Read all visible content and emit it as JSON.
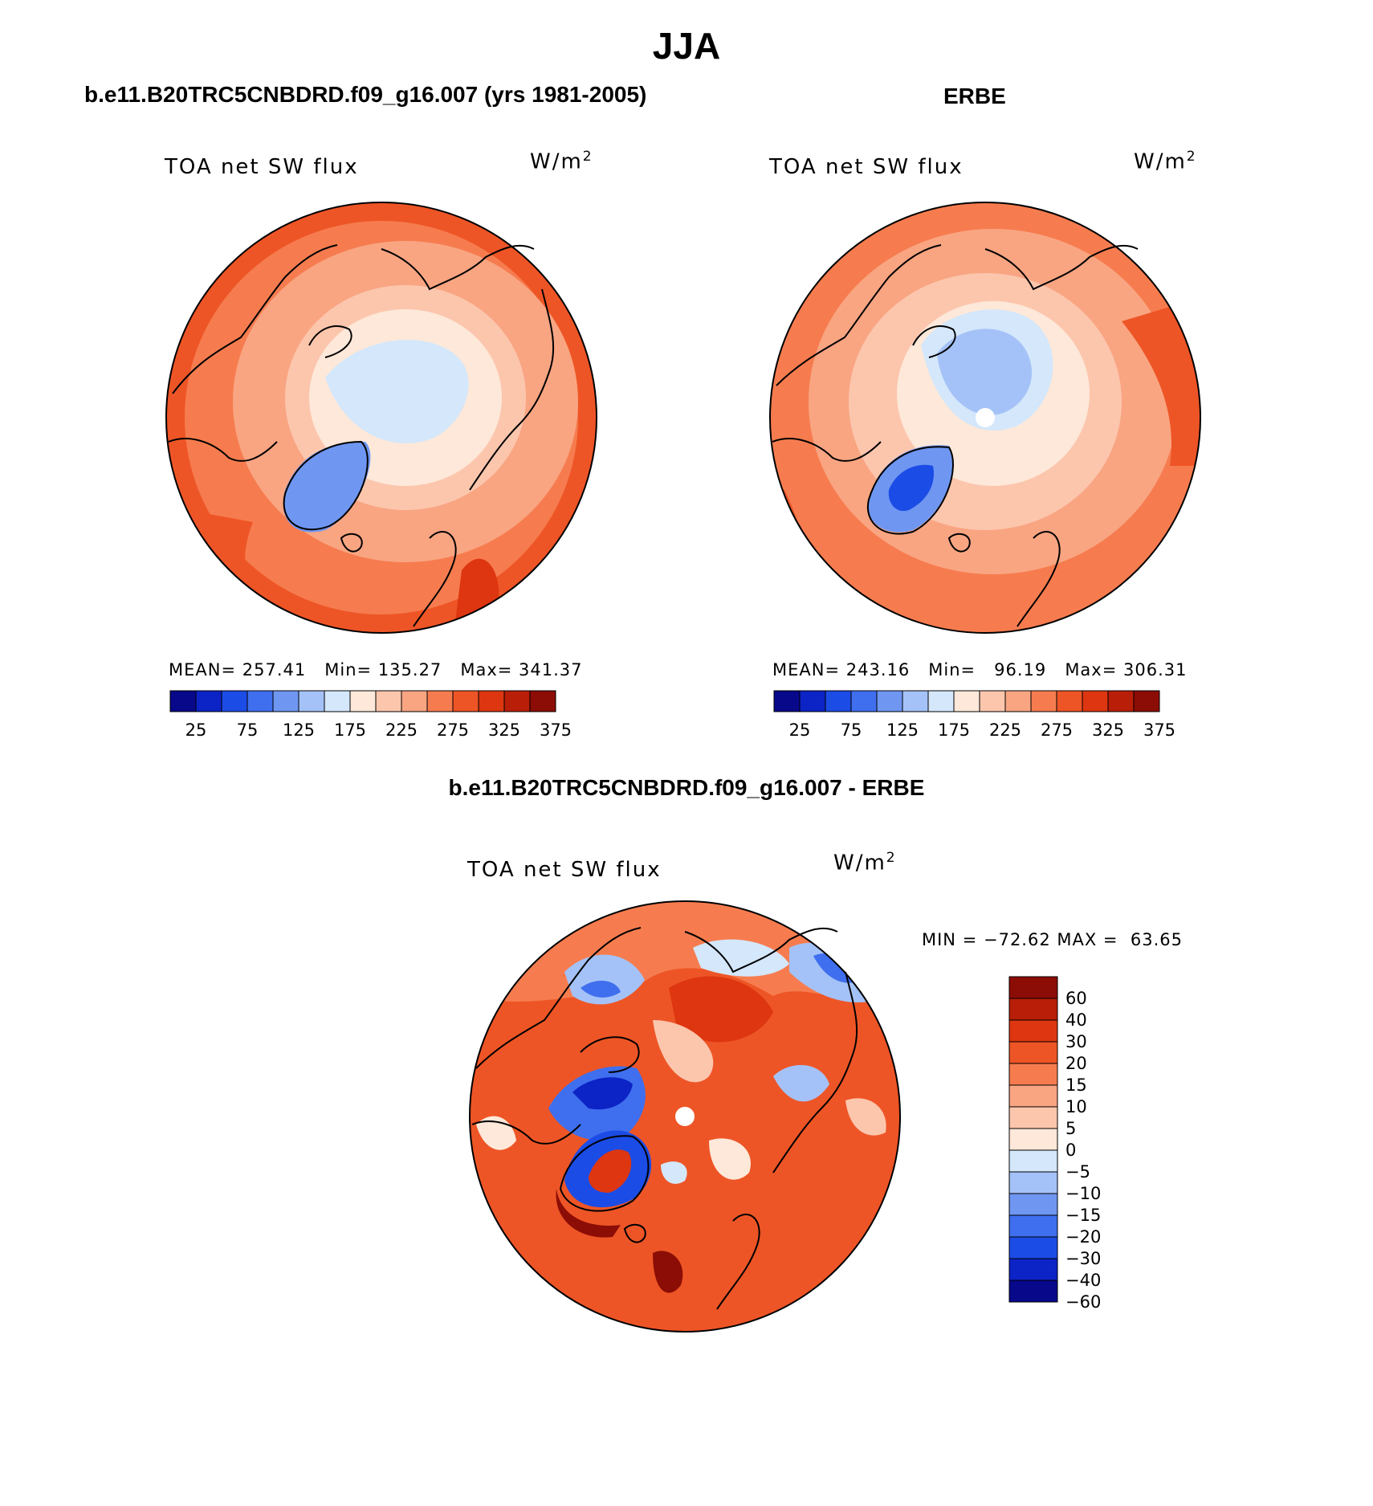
{
  "figure": {
    "main_title": "JJA",
    "panels": [
      {
        "id": "model",
        "title": "b.e11.B20TRC5CNBDRD.f09_g16.007 (yrs 1981-2005)",
        "variable": "TOA net SW flux",
        "units_base": "W/m",
        "units_exp": "2",
        "stats": {
          "mean_label": "MEAN=",
          "mean": "257.41",
          "min_label": "Min=",
          "min": "135.27",
          "max_label": "Max=",
          "max": "341.37"
        },
        "colorbar_labels": [
          "25",
          "75",
          "125",
          "175",
          "225",
          "275",
          "325",
          "375"
        ]
      },
      {
        "id": "obs",
        "title": "ERBE",
        "variable": "TOA net SW flux",
        "units_base": "W/m",
        "units_exp": "2",
        "stats": {
          "mean_label": "MEAN=",
          "mean": "243.16",
          "min_label": "Min=",
          "min": "96.19",
          "max_label": "Max=",
          "max": "306.31"
        },
        "colorbar_labels": [
          "25",
          "75",
          "125",
          "175",
          "225",
          "275",
          "325",
          "375"
        ]
      },
      {
        "id": "diff",
        "title": "b.e11.B20TRC5CNBDRD.f09_g16.007 - ERBE",
        "variable": "TOA net SW flux",
        "units_base": "W/m",
        "units_exp": "2",
        "minmax": {
          "min_label": "MIN =",
          "min": "−72.62",
          "max_label": "MAX =",
          "max": "63.65"
        },
        "colorbar_labels": [
          "60",
          "40",
          "30",
          "20",
          "15",
          "10",
          "5",
          "0",
          "−5",
          "−10",
          "−15",
          "−20",
          "−30",
          "−40",
          "−60"
        ]
      }
    ]
  },
  "colors": {
    "abs_scale": [
      "#08088a",
      "#0c23c6",
      "#1c4ce6",
      "#3f6fee",
      "#6f97f2",
      "#a4c2f7",
      "#d4e7fb",
      "#fde8d9",
      "#fcc6ad",
      "#f9a582",
      "#f67c4f",
      "#ee5526",
      "#dd3610",
      "#b81e08",
      "#8c0d05"
    ],
    "diff_scale": [
      "#8c0d05",
      "#b81e08",
      "#dd3610",
      "#ee5526",
      "#f67c4f",
      "#f9a582",
      "#fcc6ad",
      "#fde8d9",
      "#d4e7fb",
      "#a4c2f7",
      "#6f97f2",
      "#3f6fee",
      "#1c4ce6",
      "#0c23c6",
      "#08088a"
    ]
  }
}
